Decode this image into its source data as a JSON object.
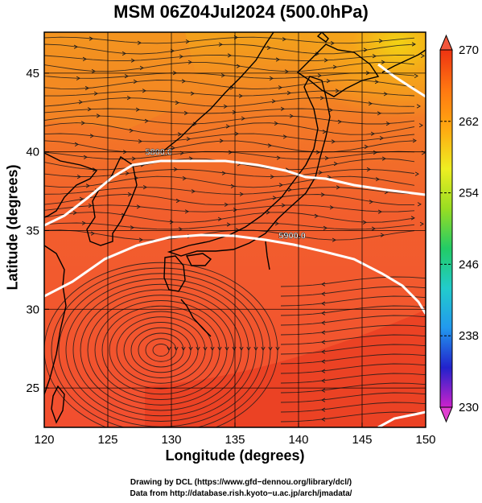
{
  "title": "MSM 06Z04Jul2024 (500.0hPa)",
  "x_axis": {
    "label": "Longitude (degrees)",
    "range": [
      120,
      150
    ],
    "ticks": [
      120,
      125,
      130,
      135,
      140,
      145,
      150
    ]
  },
  "y_axis": {
    "label": "Latitude  (degrees)",
    "range": [
      22.5,
      47.6
    ],
    "ticks": [
      25,
      30,
      35,
      40,
      45
    ]
  },
  "colorbar": {
    "min": 230,
    "max": 270,
    "tick_labels": [
      270,
      262,
      254,
      246,
      238,
      230
    ],
    "colors": [
      "#cc22cc",
      "#2222cc",
      "#2299ee",
      "#22cccc",
      "#22cc66",
      "#99dd22",
      "#eeee22",
      "#ffaa11",
      "#ff7711",
      "#ee3311"
    ]
  },
  "contours": [
    {
      "label": "5800.0",
      "label_position": [
        129.0,
        40.0
      ]
    },
    {
      "label": "5900.0",
      "label_position": [
        139.5,
        34.7
      ]
    }
  ],
  "colors": {
    "warm_fill": "#f25a2e",
    "orange_fill": "#f3a019",
    "coast": "#000000",
    "contour": "#ffffff",
    "grid": "#000000"
  },
  "credits": {
    "line1": "Drawing by DCL (https://www.gfd−dennou.org/library/dcl/)",
    "line2": "Data from http://database.rish.kyoto−u.ac.jp/arch/jmadata/"
  }
}
